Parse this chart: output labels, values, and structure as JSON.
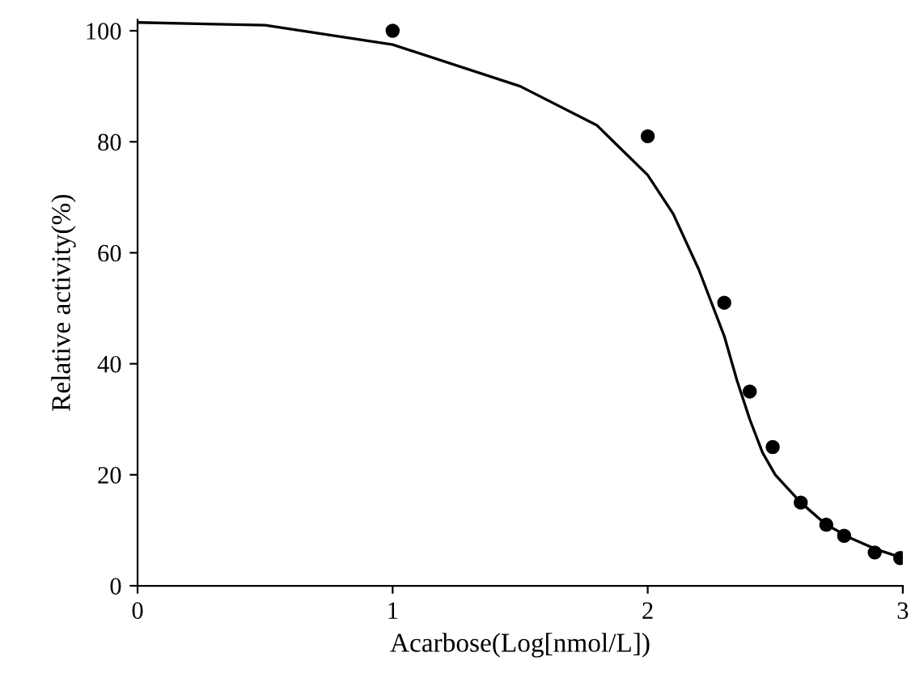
{
  "chart_data": {
    "type": "scatter",
    "xlabel": "Acarbose(Log[nmol/L])",
    "ylabel": "Relative activity(%)",
    "xlim": [
      0,
      3
    ],
    "ylim": [
      0,
      102
    ],
    "xticks": [
      0,
      1,
      2,
      3
    ],
    "yticks": [
      0,
      20,
      40,
      60,
      80,
      100
    ],
    "grid": false,
    "legend": false,
    "series": [
      {
        "color": "#000000",
        "marker": "circle",
        "x": [
          1,
          2,
          2.3,
          2.4,
          2.49,
          2.6,
          2.7,
          2.77,
          2.89,
          2.99
        ],
        "values": [
          100,
          81,
          51,
          35,
          25,
          15,
          11,
          9,
          6,
          5
        ]
      },
      {
        "type": "line",
        "color": "#000000",
        "marker": "none",
        "line_style": "solid",
        "x": [
          0,
          0.5,
          1,
          1.5,
          1.8,
          2,
          2.1,
          2.2,
          2.3,
          2.35,
          2.4,
          2.45,
          2.5,
          2.6,
          2.7,
          2.8,
          2.9,
          3
        ],
        "values": [
          101.5,
          101,
          97.5,
          90,
          83,
          74,
          67,
          57,
          45,
          37,
          30,
          24,
          20,
          15,
          11,
          8.5,
          6.5,
          5
        ]
      }
    ]
  }
}
